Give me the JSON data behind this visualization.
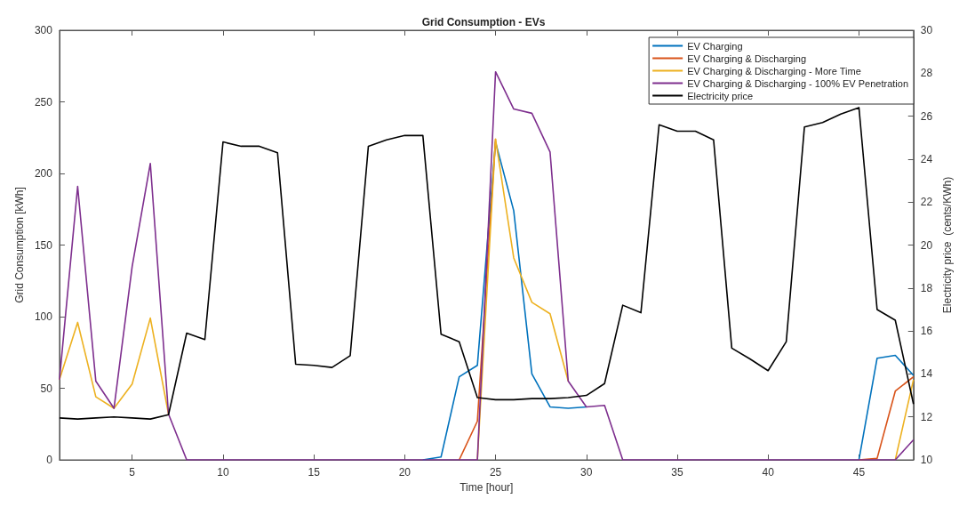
{
  "chart_data": {
    "type": "line",
    "title": "Grid Consumption - EVs",
    "xlabel": "Time [hour]",
    "ylabel": "Grid Consumption [kWh]",
    "y2label": "Electricity price  (cents/KWh)",
    "x": [
      1,
      2,
      3,
      4,
      5,
      6,
      7,
      8,
      9,
      10,
      11,
      12,
      13,
      14,
      15,
      16,
      17,
      18,
      19,
      20,
      21,
      22,
      23,
      24,
      25,
      26,
      27,
      28,
      29,
      30,
      31,
      32,
      33,
      34,
      35,
      36,
      37,
      38,
      39,
      40,
      41,
      42,
      43,
      44,
      45,
      46,
      47,
      48
    ],
    "series": [
      {
        "name": "EV Charging",
        "color": "#0072bd",
        "values": [
          null,
          null,
          null,
          null,
          null,
          null,
          null,
          null,
          null,
          null,
          null,
          null,
          null,
          null,
          null,
          null,
          null,
          null,
          null,
          null,
          0,
          2,
          58,
          66,
          222,
          174,
          60,
          37,
          36,
          37,
          null,
          null,
          null,
          null,
          null,
          null,
          null,
          null,
          null,
          null,
          null,
          null,
          null,
          null,
          0,
          71,
          73,
          59
        ]
      },
      {
        "name": "EV Charging & Discharging",
        "color": "#d95319",
        "values": [
          null,
          null,
          null,
          null,
          null,
          null,
          null,
          null,
          null,
          null,
          null,
          null,
          null,
          null,
          null,
          null,
          null,
          null,
          null,
          null,
          null,
          null,
          0,
          27,
          224,
          null,
          null,
          null,
          null,
          null,
          null,
          null,
          null,
          null,
          null,
          null,
          null,
          null,
          null,
          null,
          null,
          null,
          null,
          null,
          0,
          1,
          48,
          58
        ]
      },
      {
        "name": "EV Charging & Discharging - More Time",
        "color": "#edb120",
        "values": [
          56,
          96,
          44,
          36,
          53,
          99,
          32,
          null,
          null,
          null,
          null,
          null,
          null,
          null,
          null,
          null,
          null,
          null,
          null,
          null,
          null,
          null,
          null,
          0,
          224,
          141,
          110,
          102,
          55,
          null,
          null,
          null,
          null,
          null,
          null,
          null,
          null,
          null,
          null,
          null,
          null,
          null,
          null,
          null,
          null,
          null,
          0,
          56
        ]
      },
      {
        "name": "EV Charging & Discharging - 100% EV Penetration",
        "color": "#7e2f8e",
        "values": [
          56,
          191,
          55,
          36,
          135,
          207,
          32,
          0,
          0,
          0,
          0,
          0,
          0,
          0,
          0,
          0,
          0,
          0,
          0,
          0,
          0,
          0,
          0,
          0,
          271,
          245,
          242,
          215,
          55,
          37,
          38,
          0,
          0,
          0,
          0,
          0,
          0,
          0,
          0,
          0,
          0,
          0,
          0,
          0,
          0,
          0,
          0,
          14
        ]
      },
      {
        "name": "Electricity price",
        "color": "#000000",
        "axis": "y2",
        "values": [
          11.95,
          11.9,
          11.95,
          12.0,
          11.95,
          11.9,
          12.1,
          15.9,
          15.6,
          24.8,
          24.6,
          24.6,
          24.3,
          14.45,
          14.4,
          14.3,
          14.85,
          24.6,
          24.9,
          25.1,
          25.1,
          15.85,
          15.5,
          12.9,
          12.8,
          12.8,
          12.85,
          12.85,
          12.9,
          13.0,
          13.55,
          17.2,
          16.85,
          25.6,
          25.3,
          25.3,
          24.9,
          15.2,
          14.7,
          14.15,
          15.5,
          25.5,
          25.7,
          26.1,
          26.4,
          17.0,
          16.5,
          12.6
        ]
      }
    ],
    "xlim": [
      1,
      48
    ],
    "xticks": [
      5,
      10,
      15,
      20,
      25,
      30,
      35,
      40,
      45
    ],
    "ylim": [
      0,
      300
    ],
    "yticks": [
      0,
      50,
      100,
      150,
      200,
      250,
      300
    ],
    "y2lim": [
      10,
      30
    ],
    "y2ticks": [
      10,
      12,
      14,
      16,
      18,
      20,
      22,
      24,
      26,
      28,
      30
    ],
    "grid": false,
    "legend": "top right",
    "marker": "none",
    "line_style": "solid"
  }
}
